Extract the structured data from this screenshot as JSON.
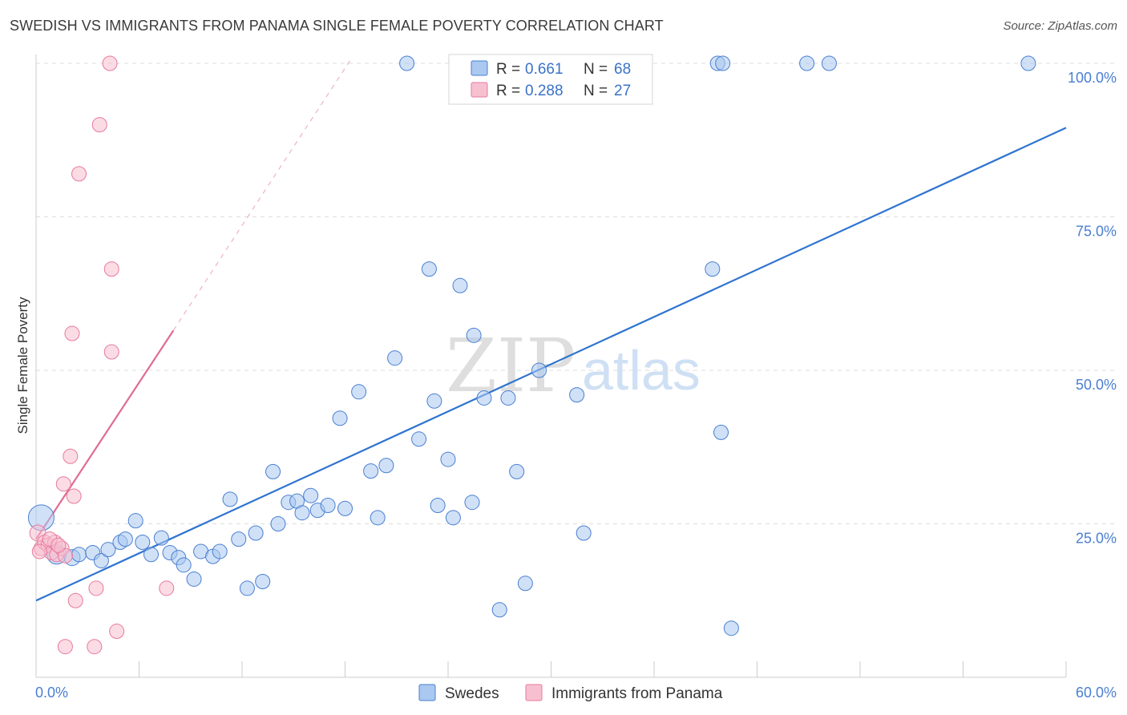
{
  "title": "SWEDISH VS IMMIGRANTS FROM PANAMA SINGLE FEMALE POVERTY CORRELATION CHART",
  "source": "Source: ZipAtlas.com",
  "watermark": {
    "part1": "ZIP",
    "part2": "atlas"
  },
  "colors": {
    "blue": "#4a7fd1",
    "blue_fill": "#aac8f0",
    "blue_line": "#2f74d0",
    "pink": "#e8799e",
    "pink_fill": "#f7c0d0",
    "pink_line": "#e06c94",
    "grid": "#dcdcdc"
  },
  "legend": {
    "rows": [
      {
        "r_label": "R =",
        "r_value": "0.661",
        "n_label": "N =",
        "n_value": "68"
      },
      {
        "r_label": "R =",
        "r_value": "0.288",
        "n_label": "N =",
        "n_value": "27"
      }
    ]
  },
  "bottom_legend": {
    "series1": "Swedes",
    "series2": "Immigrants from Panama"
  },
  "chart_data": {
    "type": "scatter",
    "title": "SWEDISH VS IMMIGRANTS FROM PANAMA SINGLE FEMALE POVERTY CORRELATION CHART",
    "xlabel": "",
    "ylabel": "Single Female Poverty",
    "xlim": [
      0,
      60
    ],
    "ylim": [
      0,
      105
    ],
    "x_tick_labels": [
      "0.0%",
      "60.0%"
    ],
    "y_ticks": [
      25,
      50,
      75,
      100
    ],
    "y_tick_labels": [
      "25.0%",
      "50.0%",
      "75.0%",
      "100.0%"
    ],
    "grid": true,
    "legend_position": "top-center",
    "series": [
      {
        "name": "Swedes",
        "color": "#4a7fd1",
        "r": 0.661,
        "n": 68,
        "trend": {
          "x": [
            0,
            60
          ],
          "y": [
            12.5,
            89.5
          ]
        },
        "points": [
          [
            0.3,
            26.0,
            16
          ],
          [
            1.2,
            20.0,
            12
          ],
          [
            2.1,
            19.5,
            10
          ],
          [
            2.5,
            20.0,
            9
          ],
          [
            3.3,
            20.3,
            9
          ],
          [
            3.8,
            19.0,
            9
          ],
          [
            4.2,
            20.8,
            9
          ],
          [
            4.9,
            22.0,
            9
          ],
          [
            5.2,
            22.5,
            9
          ],
          [
            5.8,
            25.5,
            9
          ],
          [
            6.2,
            22.0,
            9
          ],
          [
            6.7,
            20.0,
            9
          ],
          [
            7.3,
            22.7,
            9
          ],
          [
            7.8,
            20.3,
            9
          ],
          [
            8.3,
            19.5,
            9
          ],
          [
            8.6,
            18.3,
            9
          ],
          [
            9.2,
            16.0,
            9
          ],
          [
            9.6,
            20.5,
            9
          ],
          [
            10.3,
            19.7,
            9
          ],
          [
            10.7,
            20.5,
            9
          ],
          [
            11.3,
            29.0,
            9
          ],
          [
            11.8,
            22.5,
            9
          ],
          [
            12.3,
            14.5,
            9
          ],
          [
            12.8,
            23.5,
            9
          ],
          [
            13.2,
            15.6,
            9
          ],
          [
            13.8,
            33.5,
            9
          ],
          [
            14.1,
            25.0,
            9
          ],
          [
            14.7,
            28.5,
            9
          ],
          [
            15.2,
            28.7,
            9
          ],
          [
            15.5,
            26.8,
            9
          ],
          [
            16.0,
            29.6,
            9
          ],
          [
            16.4,
            27.2,
            9
          ],
          [
            17.0,
            28.0,
            9
          ],
          [
            17.7,
            42.2,
            9
          ],
          [
            18.0,
            27.5,
            9
          ],
          [
            18.8,
            46.5,
            9
          ],
          [
            19.5,
            33.6,
            9
          ],
          [
            19.9,
            26.0,
            9
          ],
          [
            20.4,
            34.5,
            9
          ],
          [
            20.9,
            52.0,
            9
          ],
          [
            21.6,
            100.0,
            9
          ],
          [
            22.3,
            38.8,
            9
          ],
          [
            22.9,
            66.5,
            9
          ],
          [
            23.2,
            45.0,
            9
          ],
          [
            23.4,
            28.0,
            9
          ],
          [
            24.0,
            35.5,
            9
          ],
          [
            24.3,
            26.0,
            9
          ],
          [
            24.7,
            63.8,
            9
          ],
          [
            25.4,
            28.5,
            9
          ],
          [
            25.5,
            55.7,
            9
          ],
          [
            26.1,
            45.5,
            9
          ],
          [
            27.0,
            11.0,
            9
          ],
          [
            27.5,
            45.5,
            9
          ],
          [
            28.0,
            33.5,
            9
          ],
          [
            28.5,
            15.3,
            9
          ],
          [
            29.3,
            50.0,
            9
          ],
          [
            31.5,
            46.0,
            9
          ],
          [
            31.9,
            23.5,
            9
          ],
          [
            32.4,
            100.0,
            9
          ],
          [
            39.7,
            100.0,
            9
          ],
          [
            40.0,
            100.0,
            9
          ],
          [
            39.9,
            39.9,
            9
          ],
          [
            40.5,
            8.0,
            9
          ],
          [
            44.9,
            100.0,
            9
          ],
          [
            46.2,
            100.0,
            9
          ],
          [
            57.8,
            100.0,
            9
          ],
          [
            31.2,
            100.0,
            9
          ],
          [
            39.4,
            66.5,
            9
          ]
        ]
      },
      {
        "name": "Immigrants from Panama",
        "color": "#e8799e",
        "r": 0.288,
        "n": 27,
        "trend_solid": {
          "x": [
            0,
            8.0
          ],
          "y": [
            22.5,
            56.5
          ]
        },
        "trend_dashed": {
          "x": [
            8.0,
            18.3
          ],
          "y": [
            56.5,
            100.5
          ]
        },
        "points": [
          [
            0.1,
            23.5,
            10
          ],
          [
            0.3,
            21.0,
            9
          ],
          [
            0.5,
            22.0,
            9
          ],
          [
            0.7,
            21.5,
            9
          ],
          [
            0.9,
            20.3,
            9
          ],
          [
            1.1,
            22.0,
            9
          ],
          [
            1.2,
            20.0,
            9
          ],
          [
            1.5,
            21.0,
            9
          ],
          [
            1.7,
            19.8,
            9
          ],
          [
            2.0,
            36.0,
            9
          ],
          [
            1.6,
            31.5,
            9
          ],
          [
            2.2,
            29.5,
            9
          ],
          [
            2.1,
            56.0,
            9
          ],
          [
            2.5,
            82.0,
            9
          ],
          [
            3.5,
            14.5,
            9
          ],
          [
            3.7,
            90.0,
            9
          ],
          [
            4.3,
            100.0,
            9
          ],
          [
            4.4,
            66.5,
            9
          ],
          [
            4.4,
            53.0,
            9
          ],
          [
            4.7,
            7.5,
            9
          ],
          [
            2.3,
            12.5,
            9
          ],
          [
            1.7,
            5.0,
            9
          ],
          [
            3.4,
            5.0,
            9
          ],
          [
            7.6,
            14.5,
            9
          ],
          [
            0.2,
            20.5,
            9
          ],
          [
            0.8,
            22.5,
            9
          ],
          [
            1.3,
            21.5,
            9
          ]
        ]
      }
    ]
  }
}
